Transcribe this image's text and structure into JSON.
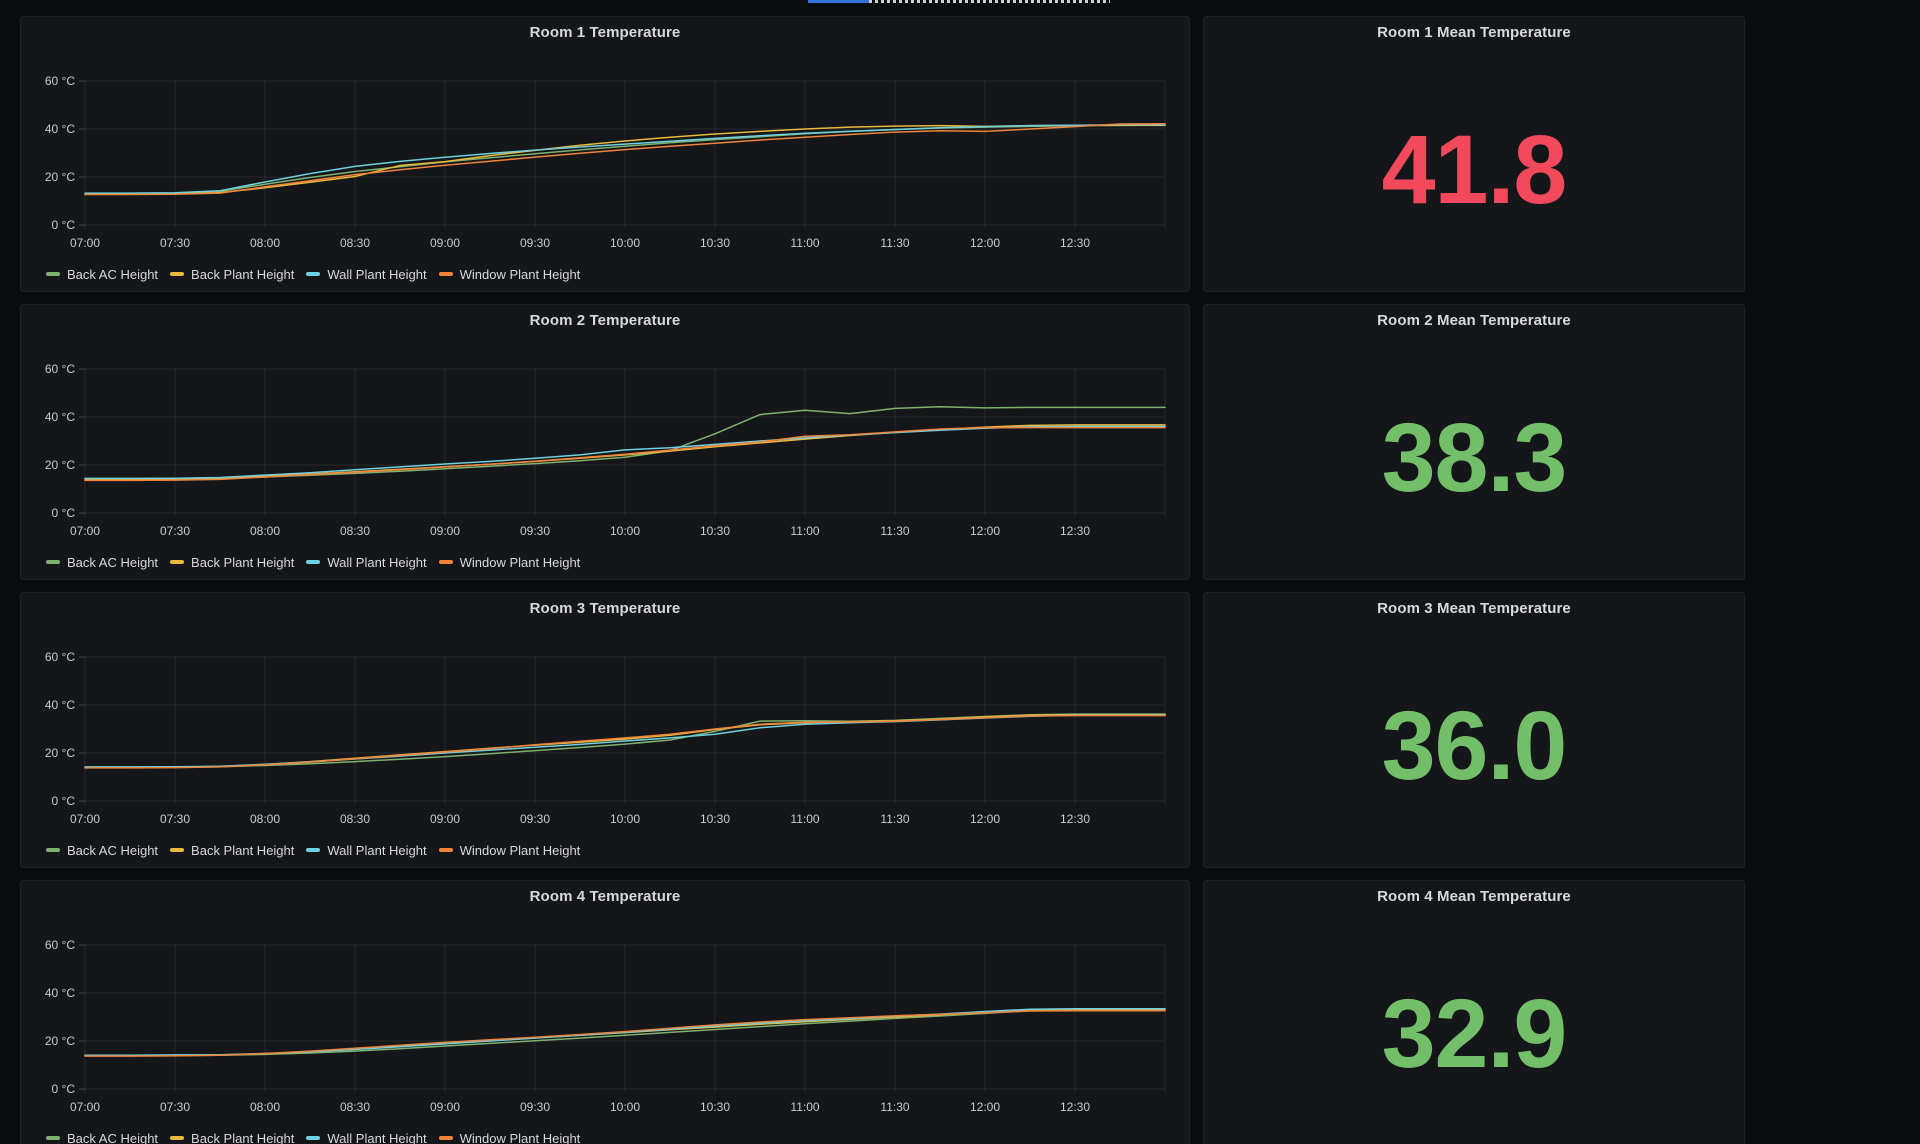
{
  "page": {
    "background": "#0b0c0e",
    "panel_background": "#141619",
    "loading_bar": {
      "progress_color": "#3274d9",
      "track_color": "#d0d1d3"
    }
  },
  "status_colors": {
    "red": "#f2495c",
    "green": "#73bf69"
  },
  "axes": {
    "y_tick_labels": [
      "60 °C",
      "40 °C",
      "20 °C",
      "0 °C"
    ],
    "x_tick_labels": [
      "07:00",
      "07:30",
      "08:00",
      "08:30",
      "09:00",
      "09:30",
      "10:00",
      "10:30",
      "11:00",
      "11:30",
      "12:00",
      "12:30"
    ]
  },
  "legend_items": [
    {
      "label": "Back AC Height",
      "color": "#7eb26d"
    },
    {
      "label": "Back Plant Height",
      "color": "#eab839"
    },
    {
      "label": "Wall Plant Height",
      "color": "#6ed0e0"
    },
    {
      "label": "Window Plant Height",
      "color": "#ef843c"
    }
  ],
  "rooms": [
    {
      "chart_title": "Room 1 Temperature",
      "stat_title": "Room 1 Mean Temperature",
      "stat_value": "41.8",
      "stat_color": "#f2495c"
    },
    {
      "chart_title": "Room 2 Temperature",
      "stat_title": "Room 2 Mean Temperature",
      "stat_value": "38.3",
      "stat_color": "#73bf69"
    },
    {
      "chart_title": "Room 3 Temperature",
      "stat_title": "Room 3 Mean Temperature",
      "stat_value": "36.0",
      "stat_color": "#73bf69"
    },
    {
      "chart_title": "Room 4 Temperature",
      "stat_title": "Room 4 Mean Temperature",
      "stat_value": "32.9",
      "stat_color": "#73bf69"
    }
  ],
  "chart_data": [
    {
      "type": "line",
      "title": "Room 1 Temperature",
      "unit": "°C",
      "ylim": [
        0,
        60
      ],
      "y_ticks": [
        0,
        20,
        40,
        60
      ],
      "x": [
        "07:00",
        "07:15",
        "07:30",
        "07:45",
        "08:00",
        "08:15",
        "08:30",
        "08:45",
        "09:00",
        "09:15",
        "09:30",
        "09:45",
        "10:00",
        "10:15",
        "10:30",
        "10:45",
        "11:00",
        "11:15",
        "11:30",
        "11:45",
        "12:00",
        "12:15",
        "12:30",
        "12:45",
        "13:00"
      ],
      "legend_position": "bottom",
      "grid": true,
      "series": [
        {
          "name": "Back AC Height",
          "color": "#7eb26d",
          "values": [
            13.1,
            13.1,
            13.1,
            14.0,
            17.0,
            19.8,
            22.3,
            24.3,
            26.3,
            28.0,
            29.7,
            31.3,
            32.8,
            34.3,
            35.6,
            36.8,
            38.0,
            39.0,
            39.8,
            40.4,
            40.8,
            41.1,
            41.4,
            41.5,
            41.6
          ]
        },
        {
          "name": "Back Plant Height",
          "color": "#eab839",
          "values": [
            12.9,
            12.9,
            12.9,
            13.5,
            15.5,
            17.8,
            20.2,
            24.8,
            26.4,
            28.9,
            31.1,
            33.2,
            35.0,
            36.6,
            37.9,
            39.0,
            40.0,
            40.8,
            41.2,
            41.4,
            41.1,
            41.4,
            41.5,
            41.5,
            41.5
          ]
        },
        {
          "name": "Wall Plant Height",
          "color": "#6ed0e0",
          "values": [
            13.3,
            13.3,
            13.4,
            14.3,
            17.9,
            21.4,
            24.4,
            26.5,
            28.2,
            29.8,
            31.2,
            32.5,
            33.7,
            34.9,
            36.1,
            37.2,
            38.2,
            39.1,
            39.8,
            40.5,
            41.0,
            41.4,
            41.6,
            41.8,
            41.8
          ]
        },
        {
          "name": "Window Plant Height",
          "color": "#ef843c",
          "values": [
            12.7,
            12.7,
            12.8,
            13.3,
            15.9,
            18.4,
            21.0,
            23.0,
            24.9,
            26.6,
            28.3,
            29.9,
            31.4,
            32.8,
            34.1,
            35.4,
            36.6,
            37.7,
            38.7,
            39.3,
            39.0,
            40.0,
            41.0,
            42.1,
            42.2
          ]
        }
      ]
    },
    {
      "type": "line",
      "title": "Room 2 Temperature",
      "unit": "°C",
      "ylim": [
        0,
        60
      ],
      "y_ticks": [
        0,
        20,
        40,
        60
      ],
      "x": [
        "07:00",
        "07:15",
        "07:30",
        "07:45",
        "08:00",
        "08:15",
        "08:30",
        "08:45",
        "09:00",
        "09:15",
        "09:30",
        "09:45",
        "10:00",
        "10:15",
        "10:30",
        "10:45",
        "11:00",
        "11:15",
        "11:30",
        "11:45",
        "12:00",
        "12:15",
        "12:30",
        "12:45",
        "13:00"
      ],
      "legend_position": "bottom",
      "grid": true,
      "series": [
        {
          "name": "Back AC Height",
          "color": "#7eb26d",
          "values": [
            14.3,
            14.3,
            14.4,
            14.5,
            15.0,
            15.7,
            16.5,
            17.4,
            18.4,
            19.5,
            20.6,
            21.8,
            23.2,
            26.0,
            33.0,
            41.0,
            42.8,
            41.4,
            43.6,
            44.3,
            43.8,
            44.0,
            44.0,
            44.0,
            44.0
          ]
        },
        {
          "name": "Back Plant Height",
          "color": "#eab839",
          "values": [
            14.1,
            14.1,
            14.2,
            14.4,
            15.3,
            16.2,
            17.2,
            18.2,
            19.3,
            20.3,
            21.5,
            22.8,
            24.2,
            25.8,
            27.6,
            29.2,
            30.8,
            32.3,
            33.6,
            34.8,
            35.8,
            36.5,
            36.7,
            36.7,
            36.7
          ]
        },
        {
          "name": "Wall Plant Height",
          "color": "#6ed0e0",
          "values": [
            14.4,
            14.4,
            14.5,
            14.8,
            15.8,
            16.8,
            18.0,
            19.2,
            20.4,
            21.5,
            22.8,
            24.2,
            26.3,
            27.2,
            28.6,
            30.0,
            31.3,
            32.5,
            33.5,
            34.5,
            35.3,
            35.9,
            36.1,
            36.1,
            36.1
          ]
        },
        {
          "name": "Window Plant Height",
          "color": "#ef843c",
          "values": [
            13.6,
            13.6,
            13.7,
            14.0,
            15.0,
            16.0,
            17.0,
            18.1,
            19.2,
            20.3,
            21.6,
            23.0,
            24.5,
            26.2,
            28.0,
            29.6,
            32.0,
            32.6,
            33.8,
            35.0,
            35.6,
            35.6,
            35.6,
            35.6,
            35.6
          ]
        }
      ]
    },
    {
      "type": "line",
      "title": "Room 3 Temperature",
      "unit": "°C",
      "ylim": [
        0,
        60
      ],
      "y_ticks": [
        0,
        20,
        40,
        60
      ],
      "x": [
        "07:00",
        "07:15",
        "07:30",
        "07:45",
        "08:00",
        "08:15",
        "08:30",
        "08:45",
        "09:00",
        "09:15",
        "09:30",
        "09:45",
        "10:00",
        "10:15",
        "10:30",
        "10:45",
        "11:00",
        "11:15",
        "11:30",
        "11:45",
        "12:00",
        "12:15",
        "12:30",
        "12:45",
        "13:00"
      ],
      "legend_position": "bottom",
      "grid": true,
      "series": [
        {
          "name": "Back AC Height",
          "color": "#7eb26d",
          "values": [
            14.1,
            14.1,
            14.1,
            14.3,
            14.8,
            15.5,
            16.4,
            17.4,
            18.5,
            19.7,
            21.0,
            22.3,
            23.7,
            25.4,
            29.0,
            33.3,
            33.4,
            33.2,
            33.6,
            34.4,
            35.2,
            35.9,
            36.2,
            36.2,
            36.2
          ]
        },
        {
          "name": "Back Plant Height",
          "color": "#eab839",
          "values": [
            14.0,
            14.0,
            14.1,
            14.4,
            15.2,
            16.4,
            17.8,
            19.2,
            20.6,
            22.0,
            23.3,
            24.5,
            25.8,
            27.4,
            29.8,
            31.8,
            32.6,
            33.0,
            33.4,
            34.1,
            35.0,
            35.7,
            36.0,
            36.0,
            36.0
          ]
        },
        {
          "name": "Wall Plant Height",
          "color": "#6ed0e0",
          "values": [
            14.2,
            14.2,
            14.3,
            14.5,
            15.3,
            16.3,
            17.5,
            18.7,
            20.0,
            21.2,
            22.4,
            23.6,
            25.0,
            26.3,
            27.8,
            30.5,
            32.0,
            32.6,
            33.1,
            33.8,
            34.6,
            35.3,
            35.8,
            35.8,
            35.8
          ]
        },
        {
          "name": "Window Plant Height",
          "color": "#ef843c",
          "values": [
            13.8,
            13.8,
            13.9,
            14.2,
            15.1,
            16.2,
            17.6,
            19.0,
            20.4,
            21.8,
            23.4,
            24.9,
            26.3,
            27.8,
            30.0,
            32.0,
            32.8,
            32.9,
            33.2,
            33.9,
            34.7,
            35.4,
            35.6,
            35.6,
            35.6
          ]
        }
      ]
    },
    {
      "type": "line",
      "title": "Room 4 Temperature",
      "unit": "°C",
      "ylim": [
        0,
        60
      ],
      "y_ticks": [
        0,
        20,
        40,
        60
      ],
      "x": [
        "07:00",
        "07:15",
        "07:30",
        "07:45",
        "08:00",
        "08:15",
        "08:30",
        "08:45",
        "09:00",
        "09:15",
        "09:30",
        "09:45",
        "10:00",
        "10:15",
        "10:30",
        "10:45",
        "11:00",
        "11:15",
        "11:30",
        "11:45",
        "12:00",
        "12:15",
        "12:30",
        "12:45",
        "13:00"
      ],
      "legend_position": "bottom",
      "grid": true,
      "series": [
        {
          "name": "Back AC Height",
          "color": "#7eb26d",
          "values": [
            14.0,
            14.0,
            14.0,
            14.1,
            14.4,
            15.0,
            15.8,
            16.8,
            17.9,
            19.0,
            20.1,
            21.2,
            22.4,
            23.6,
            24.8,
            26.0,
            27.2,
            28.3,
            29.4,
            30.4,
            31.5,
            32.6,
            32.9,
            32.9,
            32.9
          ]
        },
        {
          "name": "Back Plant Height",
          "color": "#eab839",
          "values": [
            13.9,
            13.9,
            14.0,
            14.2,
            14.7,
            15.5,
            16.6,
            17.8,
            19.0,
            20.2,
            21.3,
            22.4,
            23.5,
            24.7,
            25.8,
            27.0,
            28.0,
            29.0,
            30.0,
            30.9,
            32.0,
            33.0,
            33.0,
            33.0,
            33.0
          ]
        },
        {
          "name": "Wall Plant Height",
          "color": "#6ed0e0",
          "values": [
            14.1,
            14.1,
            14.2,
            14.3,
            14.8,
            15.5,
            16.5,
            17.6,
            18.8,
            20.0,
            21.2,
            22.4,
            23.6,
            24.9,
            26.2,
            27.4,
            28.4,
            29.3,
            30.4,
            31.2,
            32.3,
            33.2,
            33.4,
            33.4,
            33.4
          ]
        },
        {
          "name": "Window Plant Height",
          "color": "#ef843c",
          "values": [
            13.7,
            13.7,
            13.8,
            14.1,
            14.8,
            15.8,
            17.0,
            18.2,
            19.4,
            20.5,
            21.6,
            22.7,
            23.9,
            25.3,
            26.7,
            27.9,
            28.9,
            29.7,
            30.5,
            31.1,
            31.8,
            32.5,
            32.6,
            32.6,
            32.6
          ]
        }
      ]
    }
  ]
}
